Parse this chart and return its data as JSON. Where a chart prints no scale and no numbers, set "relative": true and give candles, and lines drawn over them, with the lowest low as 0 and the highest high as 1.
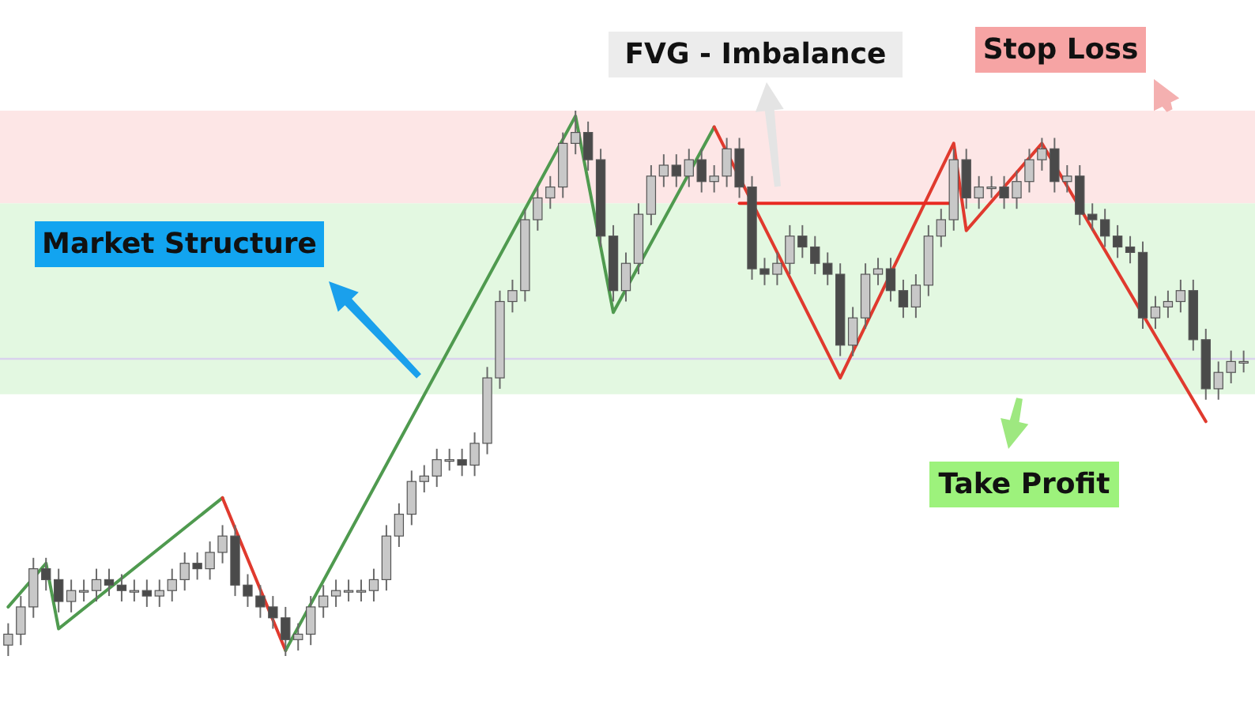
{
  "chart_data": {
    "type": "candlestick",
    "relative": true,
    "categories": [
      null,
      null,
      null,
      null,
      null,
      null,
      null,
      null,
      null,
      null,
      null,
      null,
      null,
      null,
      null,
      null,
      null,
      null,
      null,
      null,
      null,
      null,
      null,
      null,
      null,
      null,
      null,
      null,
      null,
      null,
      null,
      null,
      null,
      null,
      null,
      null,
      null,
      null,
      null,
      null,
      null,
      null,
      null,
      null,
      null,
      null,
      null,
      null,
      null,
      null,
      null,
      null,
      null,
      null,
      null,
      null,
      null,
      null,
      null,
      null,
      null,
      null,
      null,
      null,
      null,
      null,
      null,
      null,
      null,
      null,
      null,
      null,
      null,
      null,
      null,
      null,
      null,
      null,
      null,
      null,
      null,
      null,
      null,
      null,
      null,
      null,
      null,
      null,
      null,
      null,
      null,
      null,
      null,
      null,
      null,
      null,
      null,
      null,
      null
    ],
    "ohlc": [
      [
        0.02,
        0.06,
        0,
        0.04
      ],
      [
        0.04,
        0.11,
        0.02,
        0.09
      ],
      [
        0.09,
        0.18,
        0.07,
        0.16
      ],
      [
        0.16,
        0.18,
        0.12,
        0.14
      ],
      [
        0.14,
        0.16,
        0.08,
        0.1
      ],
      [
        0.1,
        0.14,
        0.08,
        0.12
      ],
      [
        0.12,
        0.14,
        0.1,
        0.12
      ],
      [
        0.12,
        0.16,
        0.1,
        0.14
      ],
      [
        0.14,
        0.16,
        0.11,
        0.13
      ],
      [
        0.13,
        0.15,
        0.1,
        0.12
      ],
      [
        0.12,
        0.14,
        0.1,
        0.12
      ],
      [
        0.12,
        0.14,
        0.09,
        0.11
      ],
      [
        0.11,
        0.14,
        0.09,
        0.12
      ],
      [
        0.12,
        0.16,
        0.1,
        0.14
      ],
      [
        0.14,
        0.19,
        0.12,
        0.17
      ],
      [
        0.17,
        0.19,
        0.14,
        0.16
      ],
      [
        0.16,
        0.21,
        0.14,
        0.19
      ],
      [
        0.19,
        0.24,
        0.17,
        0.22
      ],
      [
        0.22,
        0.24,
        0.11,
        0.13
      ],
      [
        0.13,
        0.15,
        0.09,
        0.11
      ],
      [
        0.11,
        0.13,
        0.07,
        0.09
      ],
      [
        0.09,
        0.11,
        0.05,
        0.07
      ],
      [
        0.07,
        0.09,
        0,
        0.03
      ],
      [
        0.03,
        0.06,
        0.01,
        0.04
      ],
      [
        0.04,
        0.11,
        0.02,
        0.09
      ],
      [
        0.09,
        0.13,
        0.07,
        0.11
      ],
      [
        0.11,
        0.14,
        0.09,
        0.12
      ],
      [
        0.12,
        0.14,
        0.1,
        0.12
      ],
      [
        0.12,
        0.14,
        0.1,
        0.12
      ],
      [
        0.12,
        0.16,
        0.1,
        0.14
      ],
      [
        0.14,
        0.24,
        0.12,
        0.22
      ],
      [
        0.22,
        0.28,
        0.2,
        0.26
      ],
      [
        0.26,
        0.34,
        0.24,
        0.32
      ],
      [
        0.32,
        0.35,
        0.3,
        0.33
      ],
      [
        0.33,
        0.38,
        0.31,
        0.36
      ],
      [
        0.36,
        0.38,
        0.34,
        0.36
      ],
      [
        0.36,
        0.38,
        0.33,
        0.35
      ],
      [
        0.35,
        0.41,
        0.33,
        0.39
      ],
      [
        0.39,
        0.53,
        0.37,
        0.51
      ],
      [
        0.51,
        0.67,
        0.49,
        0.65
      ],
      [
        0.65,
        0.69,
        0.63,
        0.67
      ],
      [
        0.67,
        0.82,
        0.65,
        0.8
      ],
      [
        0.8,
        0.86,
        0.78,
        0.84
      ],
      [
        0.84,
        0.88,
        0.82,
        0.86
      ],
      [
        0.86,
        0.96,
        0.84,
        0.94
      ],
      [
        0.94,
        1,
        0.92,
        0.96
      ],
      [
        0.96,
        0.98,
        0.89,
        0.91
      ],
      [
        0.91,
        0.93,
        0.75,
        0.77
      ],
      [
        0.77,
        0.79,
        0.65,
        0.67
      ],
      [
        0.67,
        0.74,
        0.65,
        0.72
      ],
      [
        0.72,
        0.83,
        0.7,
        0.81
      ],
      [
        0.81,
        0.9,
        0.79,
        0.88
      ],
      [
        0.88,
        0.92,
        0.86,
        0.9
      ],
      [
        0.9,
        0.92,
        0.86,
        0.88
      ],
      [
        0.88,
        0.93,
        0.86,
        0.91
      ],
      [
        0.91,
        0.93,
        0.85,
        0.87
      ],
      [
        0.87,
        0.9,
        0.85,
        0.88
      ],
      [
        0.88,
        0.95,
        0.86,
        0.93
      ],
      [
        0.93,
        0.95,
        0.84,
        0.86
      ],
      [
        0.86,
        0.88,
        0.69,
        0.71
      ],
      [
        0.71,
        0.73,
        0.68,
        0.7
      ],
      [
        0.7,
        0.74,
        0.68,
        0.72
      ],
      [
        0.72,
        0.79,
        0.7,
        0.77
      ],
      [
        0.77,
        0.79,
        0.73,
        0.75
      ],
      [
        0.75,
        0.77,
        0.7,
        0.72
      ],
      [
        0.72,
        0.74,
        0.68,
        0.7
      ],
      [
        0.7,
        0.72,
        0.55,
        0.57
      ],
      [
        0.57,
        0.64,
        0.55,
        0.62
      ],
      [
        0.62,
        0.72,
        0.6,
        0.7
      ],
      [
        0.7,
        0.73,
        0.68,
        0.71
      ],
      [
        0.71,
        0.73,
        0.65,
        0.67
      ],
      [
        0.67,
        0.69,
        0.62,
        0.64
      ],
      [
        0.64,
        0.7,
        0.62,
        0.68
      ],
      [
        0.68,
        0.79,
        0.66,
        0.77
      ],
      [
        0.77,
        0.82,
        0.75,
        0.8
      ],
      [
        0.8,
        0.93,
        0.78,
        0.91
      ],
      [
        0.91,
        0.93,
        0.82,
        0.84
      ],
      [
        0.84,
        0.88,
        0.82,
        0.86
      ],
      [
        0.86,
        0.88,
        0.84,
        0.86
      ],
      [
        0.86,
        0.88,
        0.82,
        0.84
      ],
      [
        0.84,
        0.89,
        0.82,
        0.87
      ],
      [
        0.87,
        0.93,
        0.85,
        0.91
      ],
      [
        0.91,
        0.95,
        0.89,
        0.93
      ],
      [
        0.93,
        0.95,
        0.85,
        0.87
      ],
      [
        0.87,
        0.9,
        0.85,
        0.88
      ],
      [
        0.88,
        0.9,
        0.79,
        0.81
      ],
      [
        0.81,
        0.83,
        0.78,
        0.8
      ],
      [
        0.8,
        0.82,
        0.75,
        0.77
      ],
      [
        0.77,
        0.79,
        0.73,
        0.75
      ],
      [
        0.75,
        0.77,
        0.72,
        0.74
      ],
      [
        0.74,
        0.76,
        0.6,
        0.62
      ],
      [
        0.62,
        0.66,
        0.6,
        0.64
      ],
      [
        0.64,
        0.67,
        0.62,
        0.65
      ],
      [
        0.65,
        0.69,
        0.63,
        0.67
      ],
      [
        0.67,
        0.69,
        0.56,
        0.58
      ],
      [
        0.58,
        0.6,
        0.47,
        0.49
      ],
      [
        0.49,
        0.54,
        0.47,
        0.52
      ],
      [
        0.52,
        0.56,
        0.5,
        0.54
      ],
      [
        0.54,
        0.56,
        0.52,
        0.54
      ]
    ],
    "series": [
      {
        "type": "line",
        "color": "#4f9a4f",
        "values": [
          0.09,
          null,
          null,
          0.17,
          0.05,
          null,
          null,
          null,
          null,
          null,
          null,
          null,
          null,
          null,
          null,
          null,
          null,
          0.29,
          null,
          null,
          null,
          null,
          null,
          null,
          null,
          null,
          null,
          null,
          null,
          null,
          null,
          null,
          null,
          null,
          null,
          null,
          null,
          null,
          null,
          null,
          null,
          null,
          null,
          null,
          null,
          null,
          null,
          null,
          null,
          null,
          null,
          null,
          null,
          null,
          null,
          null,
          null,
          null,
          null,
          null,
          null,
          null,
          null,
          null,
          null,
          null,
          null,
          null,
          null,
          null,
          null,
          null,
          null,
          null,
          null,
          null,
          null,
          null,
          null,
          null,
          null,
          null,
          null,
          null,
          null,
          null,
          null,
          null,
          null,
          null,
          null,
          null,
          null,
          null,
          null,
          null,
          null,
          null,
          null
        ]
      },
      {
        "type": "line",
        "color": "#e03a2e",
        "values": [
          null,
          null,
          null,
          null,
          null,
          null,
          null,
          null,
          null,
          null,
          null,
          null,
          null,
          null,
          null,
          null,
          null,
          0.29,
          null,
          null,
          null,
          null,
          0.01,
          null,
          null,
          null,
          null,
          null,
          null,
          null,
          null,
          null,
          null,
          null,
          null,
          null,
          null,
          null,
          null,
          null,
          null,
          null,
          null,
          null,
          null,
          null,
          null,
          null,
          null,
          null,
          null,
          null,
          null,
          null,
          null,
          null,
          null,
          null,
          null,
          null,
          null,
          null,
          null,
          null,
          null,
          null,
          null,
          null,
          null,
          null,
          null,
          null,
          null,
          null,
          null,
          null,
          null,
          null,
          null,
          null,
          null,
          null,
          null,
          null,
          null,
          null,
          null,
          null,
          null,
          null,
          null,
          null,
          null,
          null,
          null,
          null,
          null,
          null,
          null
        ]
      },
      {
        "type": "line",
        "color": "#4f9a4f",
        "values": [
          null,
          null,
          null,
          null,
          null,
          null,
          null,
          null,
          null,
          null,
          null,
          null,
          null,
          null,
          null,
          null,
          null,
          null,
          null,
          null,
          null,
          null,
          0.01,
          null,
          null,
          null,
          null,
          null,
          null,
          null,
          null,
          null,
          null,
          null,
          null,
          null,
          null,
          null,
          null,
          null,
          null,
          null,
          null,
          null,
          null,
          0.99,
          null,
          null,
          0.63,
          null,
          null,
          null,
          null,
          null,
          null,
          null,
          0.97,
          null,
          null,
          null,
          null,
          null,
          null,
          null,
          null,
          null,
          null,
          null,
          null,
          null,
          null,
          null,
          null,
          null,
          null,
          null,
          null,
          null,
          null,
          null,
          null,
          null,
          null,
          null,
          null,
          null,
          null,
          null,
          null,
          null,
          null,
          null,
          null,
          null,
          null,
          null,
          null,
          null,
          null
        ]
      },
      {
        "type": "line",
        "color": "#e03a2e",
        "values": [
          null,
          null,
          null,
          null,
          null,
          null,
          null,
          null,
          null,
          null,
          null,
          null,
          null,
          null,
          null,
          null,
          null,
          null,
          null,
          null,
          null,
          null,
          null,
          null,
          null,
          null,
          null,
          null,
          null,
          null,
          null,
          null,
          null,
          null,
          null,
          null,
          null,
          null,
          null,
          null,
          null,
          null,
          null,
          null,
          null,
          null,
          null,
          null,
          null,
          null,
          null,
          null,
          null,
          null,
          null,
          null,
          0.97,
          null,
          null,
          null,
          null,
          null,
          null,
          null,
          null,
          null,
          0.51,
          null,
          null,
          null,
          null,
          null,
          null,
          null,
          null,
          0.94,
          0.78,
          null,
          null,
          null,
          null,
          null,
          0.94,
          null,
          null,
          null,
          null,
          null,
          null,
          null,
          null,
          null,
          null,
          null,
          null,
          0.43,
          null,
          null,
          null
        ]
      },
      {
        "type": "line",
        "color": "#e82a22",
        "values": [
          null,
          null,
          null,
          null,
          null,
          null,
          null,
          null,
          null,
          null,
          null,
          null,
          null,
          null,
          null,
          null,
          null,
          null,
          null,
          null,
          null,
          null,
          null,
          null,
          null,
          null,
          null,
          null,
          null,
          null,
          null,
          null,
          null,
          null,
          null,
          null,
          null,
          null,
          null,
          null,
          null,
          null,
          null,
          null,
          null,
          null,
          null,
          null,
          null,
          null,
          null,
          null,
          null,
          null,
          null,
          null,
          null,
          null,
          0.83,
          null,
          null,
          null,
          null,
          null,
          null,
          null,
          null,
          null,
          null,
          null,
          null,
          null,
          null,
          null,
          null,
          0.83,
          null,
          null,
          null,
          null,
          null,
          null,
          null,
          null,
          null,
          null,
          null,
          null,
          null,
          null,
          null,
          null,
          null,
          null,
          null,
          null,
          null,
          null,
          null
        ]
      }
    ],
    "ref_lines": [
      {
        "axis": "y",
        "value": 0.545,
        "color": "#d9d2ee"
      }
    ],
    "bands": [
      {
        "axis": "y",
        "from": 0.83,
        "to": 1,
        "label": "Stop Loss",
        "color": "#fde6e6"
      },
      {
        "axis": "y",
        "from": 0.48,
        "to": 0.83,
        "label": "Take Profit",
        "color": "#e3f8e1"
      }
    ],
    "annotations": [
      "Market Structure",
      "FVG - Imbalance"
    ]
  }
}
